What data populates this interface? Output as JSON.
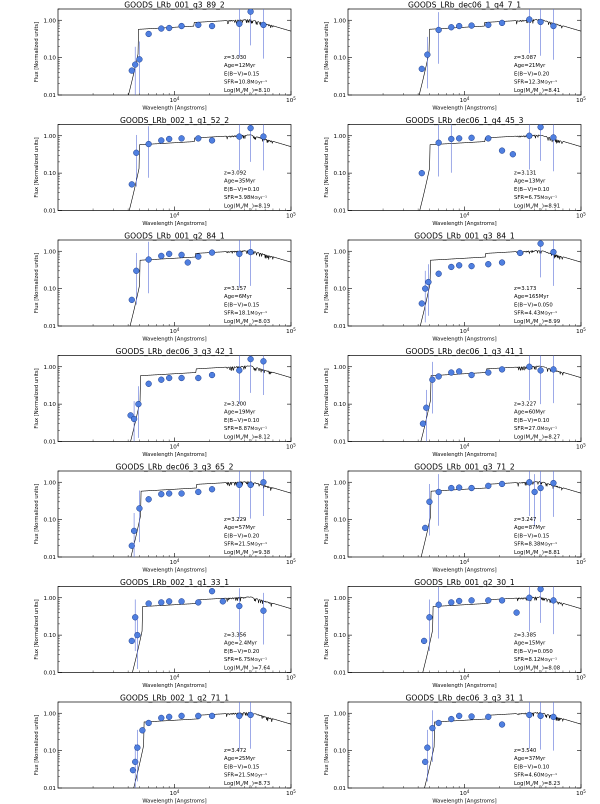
{
  "figure": {
    "layout": "7 rows x 2 columns of SED fits",
    "colors": {
      "sed_line": "#000000",
      "point_fill": "#4f7fe0",
      "point_stroke": "#1c3c8c",
      "error_bar": "#5c72d8",
      "axes": "#000000"
    },
    "x_axis_label": "Wavelength [Angstroms]",
    "y_axis_label": "Flux [Normalized units]",
    "x_ticks": [
      {
        "label": "10",
        "exp": "4",
        "value": 10000
      },
      {
        "label": "10",
        "exp": "5",
        "value": 100000
      }
    ],
    "y_ticks": [
      "1.00",
      "0.10",
      "0.01"
    ],
    "info_labels": {
      "z": "z=",
      "age": "Age=",
      "ebv": "E(B−V)=",
      "sfr": "SFR=",
      "sfr_unit": "M⊙yr⁻¹",
      "mass_prefix": "Log(M",
      "mass_mid": "/M",
      "mass_suffix": ")="
    }
  },
  "chart_data": [
    {
      "type": "sed",
      "title": "GOODS_LRb_001_q3_89_2",
      "z": "3.030",
      "age": "12Myr",
      "ebv": "0.15",
      "sfr": "10.8",
      "mass": "8.10",
      "xlim": [
        1000,
        100000
      ],
      "ylim": [
        0.01,
        2.0
      ],
      "points": [
        [
          4300,
          0.045
        ],
        [
          4600,
          0.065
        ],
        [
          5000,
          0.09
        ],
        [
          6000,
          0.43
        ],
        [
          7700,
          0.6
        ],
        [
          9000,
          0.62
        ],
        [
          11500,
          0.7
        ],
        [
          16000,
          0.75
        ],
        [
          21000,
          0.7
        ],
        [
          36000,
          0.8
        ],
        [
          45000,
          1.7
        ],
        [
          58000,
          0.75
        ]
      ]
    },
    {
      "type": "sed",
      "title": "GOODS_LRb_dec06_1_q4_7_1",
      "z": "3.087",
      "age": "21Myr",
      "ebv": "0.20",
      "sfr": "12.3",
      "mass": "8.41",
      "xlim": [
        1000,
        100000
      ],
      "ylim": [
        0.01,
        2.0
      ],
      "points": [
        [
          4300,
          0.05
        ],
        [
          4800,
          0.12
        ],
        [
          6000,
          0.55
        ],
        [
          7700,
          0.65
        ],
        [
          9000,
          0.7
        ],
        [
          11500,
          0.72
        ],
        [
          16000,
          0.75
        ],
        [
          21000,
          0.85
        ],
        [
          36000,
          1.05
        ],
        [
          45000,
          0.9
        ],
        [
          58000,
          0.7
        ]
      ]
    },
    {
      "type": "sed",
      "title": "GOODS_LRb_002_1_q1_52_2",
      "z": "3.092",
      "age": "35Myr",
      "ebv": "0.10",
      "sfr": "3.98",
      "mass": "8.19",
      "xlim": [
        1000,
        100000
      ],
      "ylim": [
        0.01,
        2.0
      ],
      "points": [
        [
          4300,
          0.05
        ],
        [
          4700,
          0.35
        ],
        [
          6000,
          0.6
        ],
        [
          7700,
          0.75
        ],
        [
          9000,
          0.82
        ],
        [
          11500,
          0.85
        ],
        [
          16000,
          0.85
        ],
        [
          21000,
          0.75
        ],
        [
          36000,
          0.95
        ],
        [
          45000,
          1.6
        ],
        [
          58000,
          0.95
        ]
      ]
    },
    {
      "type": "sed",
      "title": "GOODS_LRb_dec06_1_q4_45_3",
      "z": "3.131",
      "age": "13Myr",
      "ebv": "0.10",
      "sfr": "6.75",
      "mass": "8.91",
      "xlim": [
        1000,
        100000
      ],
      "ylim": [
        0.01,
        2.0
      ],
      "points": [
        [
          4300,
          0.1
        ],
        [
          6000,
          0.65
        ],
        [
          7700,
          0.82
        ],
        [
          9000,
          0.85
        ],
        [
          11500,
          0.88
        ],
        [
          16000,
          0.85
        ],
        [
          21000,
          0.4
        ],
        [
          26000,
          0.32
        ],
        [
          36000,
          1.0
        ],
        [
          45000,
          1.7
        ],
        [
          58000,
          0.9
        ]
      ]
    },
    {
      "type": "sed",
      "title": "GOODS_LRb_001_q2_84_1",
      "z": "3.157",
      "age": "6Myr",
      "ebv": "0.15",
      "sfr": "18.1",
      "mass": "8.03",
      "xlim": [
        1000,
        100000
      ],
      "ylim": [
        0.01,
        2.0
      ],
      "points": [
        [
          4300,
          0.05
        ],
        [
          4700,
          0.3
        ],
        [
          6000,
          0.6
        ],
        [
          7700,
          0.75
        ],
        [
          9000,
          0.85
        ],
        [
          11500,
          0.8
        ],
        [
          13000,
          0.5
        ],
        [
          16000,
          0.72
        ],
        [
          21000,
          0.92
        ],
        [
          36000,
          0.85
        ],
        [
          45000,
          0.95
        ]
      ]
    },
    {
      "type": "sed",
      "title": "GOODS_LRb_001_q3_84_1",
      "z": "3.173",
      "age": "165Myr",
      "ebv": "0.050",
      "sfr": "4.43",
      "mass": "8.99",
      "xlim": [
        1000,
        100000
      ],
      "ylim": [
        0.01,
        2.0
      ],
      "points": [
        [
          4300,
          0.04
        ],
        [
          4600,
          0.1
        ],
        [
          4900,
          0.15
        ],
        [
          6000,
          0.25
        ],
        [
          7700,
          0.38
        ],
        [
          9000,
          0.42
        ],
        [
          11500,
          0.4
        ],
        [
          16000,
          0.45
        ],
        [
          21000,
          0.5
        ],
        [
          30000,
          0.9
        ],
        [
          45000,
          1.6
        ],
        [
          58000,
          0.95
        ]
      ]
    },
    {
      "type": "sed",
      "title": "GOODS_LRb_dec06_3_q3_42_1",
      "z": "3.200",
      "age": "19Myr",
      "ebv": "0.10",
      "sfr": "8.87",
      "mass": "8.12",
      "xlim": [
        1000,
        100000
      ],
      "ylim": [
        0.01,
        2.0
      ],
      "points": [
        [
          4200,
          0.05
        ],
        [
          4500,
          0.04
        ],
        [
          4900,
          0.1
        ],
        [
          6000,
          0.35
        ],
        [
          7700,
          0.45
        ],
        [
          9000,
          0.5
        ],
        [
          11500,
          0.5
        ],
        [
          16000,
          0.5
        ],
        [
          21000,
          0.6
        ],
        [
          36000,
          0.8
        ],
        [
          45000,
          1.6
        ],
        [
          58000,
          1.4
        ]
      ]
    },
    {
      "type": "sed",
      "title": "GOODS_LRb_dec06_1_q3_41_1",
      "z": "3.227",
      "age": "60Myr",
      "ebv": "0.10",
      "sfr": "27.0",
      "mass": "8.27",
      "xlim": [
        1000,
        100000
      ],
      "ylim": [
        0.01,
        2.0
      ],
      "points": [
        [
          4400,
          0.03
        ],
        [
          4700,
          0.08
        ],
        [
          5300,
          0.45
        ],
        [
          6000,
          0.55
        ],
        [
          7700,
          0.7
        ],
        [
          9000,
          0.75
        ],
        [
          11500,
          0.6
        ],
        [
          16000,
          0.7
        ],
        [
          21000,
          0.85
        ],
        [
          36000,
          1.0
        ],
        [
          45000,
          0.8
        ],
        [
          58000,
          0.85
        ]
      ]
    },
    {
      "type": "sed",
      "title": "GOODS_LRb_dec06_3_q3_65_2",
      "z": "3.229",
      "age": "57Myr",
      "ebv": "0.20",
      "sfr": "21.5",
      "mass": "9.38",
      "xlim": [
        1000,
        100000
      ],
      "ylim": [
        0.01,
        2.0
      ],
      "points": [
        [
          4300,
          0.02
        ],
        [
          4500,
          0.05
        ],
        [
          5000,
          0.2
        ],
        [
          6000,
          0.35
        ],
        [
          7700,
          0.48
        ],
        [
          9000,
          0.5
        ],
        [
          11500,
          0.5
        ],
        [
          16000,
          0.55
        ],
        [
          21000,
          0.65
        ],
        [
          36000,
          0.85
        ],
        [
          45000,
          0.85
        ],
        [
          58000,
          1.0
        ]
      ]
    },
    {
      "type": "sed",
      "title": "GOODS_LRb_001_q3_71_2",
      "z": "3.247",
      "age": "87Myr",
      "ebv": "0.15",
      "sfr": "8.38",
      "mass": "8.81",
      "xlim": [
        1000,
        100000
      ],
      "ylim": [
        0.01,
        2.0
      ],
      "points": [
        [
          4600,
          0.06
        ],
        [
          5000,
          0.3
        ],
        [
          6000,
          0.55
        ],
        [
          7700,
          0.7
        ],
        [
          9000,
          0.72
        ],
        [
          11500,
          0.7
        ],
        [
          16000,
          0.8
        ],
        [
          21000,
          0.9
        ],
        [
          36000,
          1.0
        ],
        [
          40000,
          0.55
        ],
        [
          45000,
          0.7
        ],
        [
          58000,
          0.95
        ]
      ]
    },
    {
      "type": "sed",
      "title": "GOODS_LRb_002_1_q1_33_1",
      "z": "3.356",
      "age": "2.4Myr",
      "ebv": "0.20",
      "sfr": "6.75",
      "mass": "7.64",
      "xlim": [
        1000,
        100000
      ],
      "ylim": [
        0.01,
        2.0
      ],
      "points": [
        [
          4300,
          0.07
        ],
        [
          4600,
          0.3
        ],
        [
          4800,
          0.1
        ],
        [
          6000,
          0.7
        ],
        [
          7700,
          0.75
        ],
        [
          9000,
          0.8
        ],
        [
          11500,
          0.8
        ],
        [
          16000,
          0.75
        ],
        [
          21000,
          1.5
        ],
        [
          26000,
          0.8
        ],
        [
          36000,
          0.6
        ],
        [
          58000,
          0.45
        ]
      ]
    },
    {
      "type": "sed",
      "title": "GOODS_LRb_001_q2_30_1",
      "z": "3.385",
      "age": "15Myr",
      "ebv": "0.050",
      "sfr": "8.12",
      "mass": "8.08",
      "xlim": [
        1000,
        100000
      ],
      "ylim": [
        0.01,
        2.0
      ],
      "points": [
        [
          4500,
          0.07
        ],
        [
          5000,
          0.3
        ],
        [
          6000,
          0.65
        ],
        [
          7700,
          0.75
        ],
        [
          9000,
          0.82
        ],
        [
          11500,
          0.85
        ],
        [
          16000,
          0.85
        ],
        [
          21000,
          0.85
        ],
        [
          28000,
          0.4
        ],
        [
          36000,
          1.0
        ],
        [
          45000,
          1.7
        ],
        [
          58000,
          0.85
        ]
      ]
    },
    {
      "type": "sed",
      "title": "GOODS_LRb_002_1_q2_71_1",
      "z": "3.472",
      "age": "25Myr",
      "ebv": "0.15",
      "sfr": "21.5",
      "mass": "8.73",
      "xlim": [
        1000,
        100000
      ],
      "ylim": [
        0.01,
        2.0
      ],
      "points": [
        [
          4400,
          0.03
        ],
        [
          4600,
          0.05
        ],
        [
          4800,
          0.12
        ],
        [
          5300,
          0.35
        ],
        [
          6000,
          0.55
        ],
        [
          7700,
          0.75
        ],
        [
          9000,
          0.8
        ],
        [
          11500,
          0.85
        ],
        [
          16000,
          0.85
        ],
        [
          21000,
          0.85
        ],
        [
          36000,
          0.85
        ],
        [
          45000,
          0.9
        ]
      ]
    },
    {
      "type": "sed",
      "title": "GOODS_LRb_dec06_3_q3_31_1",
      "z": "3.540",
      "age": "37Myr",
      "ebv": "0.10",
      "sfr": "4.60",
      "mass": "8.23",
      "xlim": [
        1000,
        100000
      ],
      "ylim": [
        0.01,
        2.0
      ],
      "points": [
        [
          4600,
          0.05
        ],
        [
          4800,
          0.12
        ],
        [
          5300,
          0.4
        ],
        [
          6000,
          0.55
        ],
        [
          7700,
          0.7
        ],
        [
          9000,
          0.85
        ],
        [
          11500,
          0.82
        ],
        [
          16000,
          0.8
        ],
        [
          21000,
          0.5
        ],
        [
          36000,
          0.9
        ],
        [
          45000,
          0.85
        ],
        [
          58000,
          0.8
        ]
      ]
    }
  ]
}
